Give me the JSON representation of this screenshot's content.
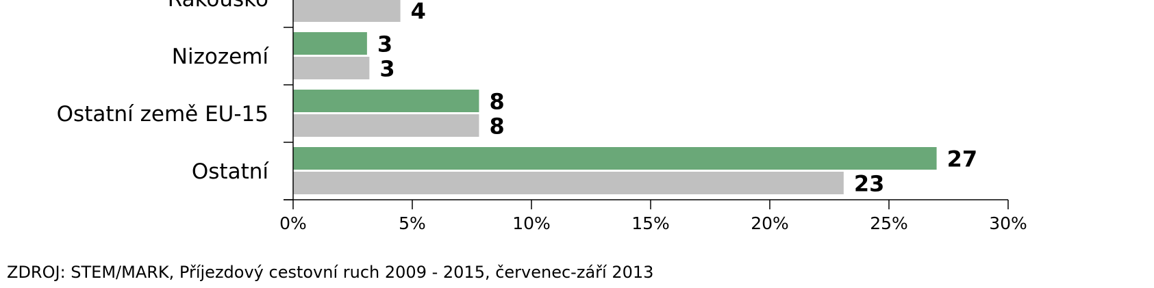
{
  "chart_data": {
    "type": "bar",
    "orientation": "horizontal",
    "categories": [
      "Rakousko",
      "Nizozemí",
      "Ostatní země EU-15",
      "Ostatní"
    ],
    "series": [
      {
        "values": [
          null,
          3,
          8,
          27
        ],
        "color": "#6aa878"
      },
      {
        "values": [
          4,
          3,
          8,
          23
        ],
        "color": "#c0c0c0"
      }
    ],
    "bar_values_precise": [
      [
        null,
        3.1,
        7.8,
        27.0
      ],
      [
        4.5,
        3.2,
        7.8,
        23.1
      ]
    ],
    "xlim": [
      0,
      30
    ],
    "x_ticks": [
      "0%",
      "5%",
      "10%",
      "15%",
      "20%",
      "25%",
      "30%"
    ],
    "grid": false,
    "legend": "none"
  },
  "footer": {
    "source": "ZDROJ: STEM/MARK, Příjezdový cestovní ruch 2009 - 2015, červenec-září 2013"
  }
}
